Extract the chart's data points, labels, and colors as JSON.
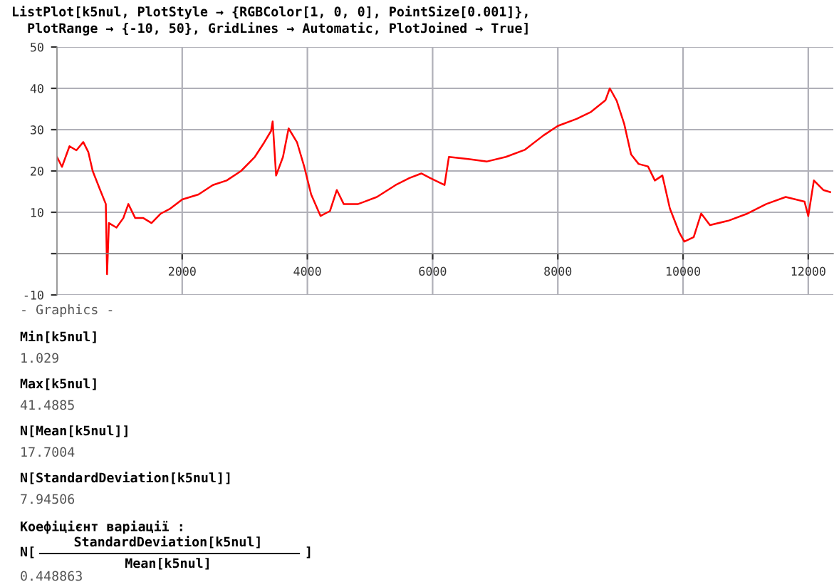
{
  "chart_data": {
    "type": "line",
    "title": "ListPlot[k5nul, PlotStyle → {RGBColor[1, 0, 0], PointSize[0.001]},\n  PlotRange → {-10, 50}, GridLines → Automatic, PlotJoined → True]",
    "x": [
      0,
      80,
      200,
      310,
      420,
      500,
      570,
      690,
      780,
      800,
      830,
      950,
      1060,
      1140,
      1250,
      1380,
      1510,
      1660,
      1810,
      2000,
      2260,
      2490,
      2710,
      2940,
      3160,
      3310,
      3420,
      3445,
      3500,
      3610,
      3700,
      3835,
      3950,
      4060,
      4210,
      4360,
      4470,
      4580,
      4810,
      5110,
      5410,
      5630,
      5820,
      5960,
      6190,
      6260,
      6570,
      6870,
      7170,
      7470,
      7770,
      8000,
      8300,
      8530,
      8760,
      8830,
      8940,
      9060,
      9170,
      9290,
      9440,
      9550,
      9670,
      9790,
      9940,
      10020,
      10170,
      10290,
      10430,
      10730,
      11030,
      11330,
      11640,
      11940,
      12000,
      12090,
      12240,
      12350
    ],
    "series": [
      {
        "color": "#ff0000",
        "values": [
          23.4,
          21,
          26,
          25,
          27,
          24.6,
          20,
          15.4,
          12,
          -5,
          7.4,
          6.3,
          8.6,
          12,
          8.6,
          8.6,
          7.4,
          9.7,
          10.9,
          13.1,
          14.3,
          16.6,
          17.7,
          20,
          23.4,
          26.9,
          29.7,
          32,
          18.9,
          23.4,
          30.3,
          26.9,
          21,
          14.3,
          9.1,
          10.3,
          15.4,
          12,
          12,
          13.7,
          16.6,
          18.3,
          19.4,
          18.3,
          16.6,
          23.4,
          22.9,
          22.3,
          23.4,
          25.1,
          28.6,
          30.9,
          32.6,
          34.3,
          37.1,
          40,
          37,
          31.4,
          24,
          21.7,
          21.1,
          17.7,
          18.9,
          10.9,
          5.1,
          2.9,
          4,
          9.7,
          6.9,
          8,
          9.7,
          12,
          13.7,
          12.6,
          9.1,
          17.7,
          15.4,
          14.9
        ]
      }
    ],
    "xlim": [
      0,
      12400
    ],
    "ylim": [
      -10,
      50
    ],
    "xticks": [
      2000,
      4000,
      6000,
      8000,
      10000,
      12000
    ],
    "yticks": [
      -10,
      {
        "value": 0,
        "label": null
      },
      10,
      20,
      30,
      40,
      50
    ],
    "grid": true,
    "marker": "none",
    "line_style": "solid",
    "annotations": [
      "- Graphics -",
      "Min[k5nul]",
      "1.029",
      "Max[k5nul]",
      "41.4885",
      "N[Mean[k5nul]]",
      "17.7004",
      "N[StandardDeviation[k5nul]]",
      "7.94506",
      "Коефіцієнт варіації :",
      "N[",
      "StandardDeviation[k5nul]",
      "Mean[k5nul]",
      "]",
      "0.448863"
    ]
  }
}
